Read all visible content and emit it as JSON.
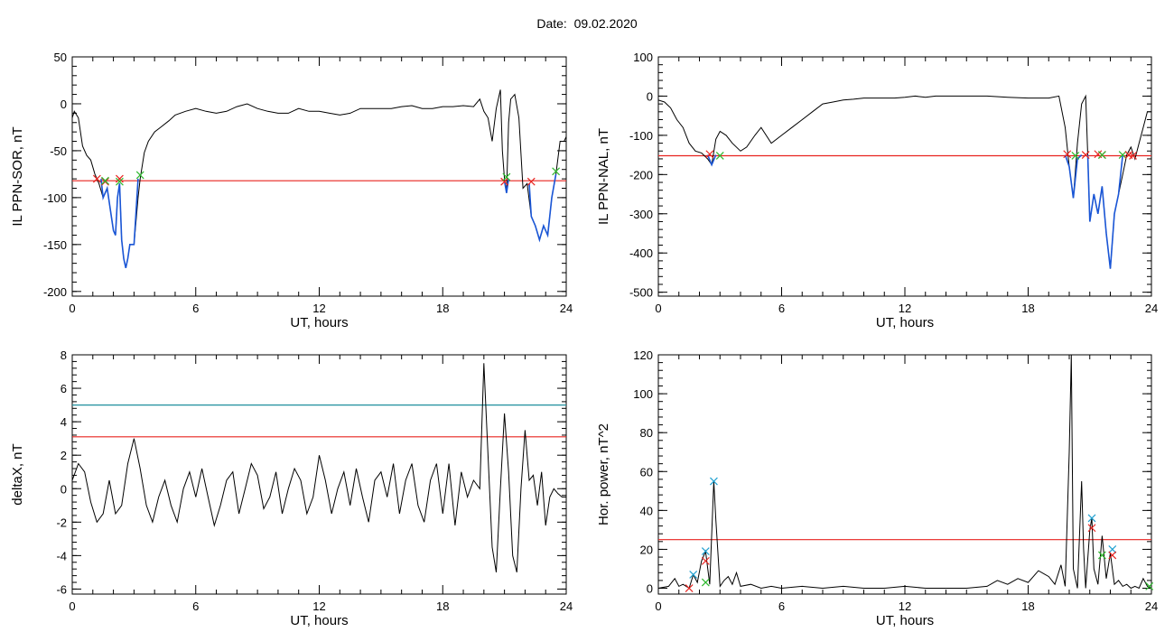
{
  "title": "Date:  09.02.2020",
  "chart_data": [
    {
      "type": "line",
      "id": "p1",
      "ylabel": "IL PPN-SOR, nT",
      "xlabel": "UT, hours",
      "xlim": [
        0,
        24
      ],
      "ylim": [
        -205,
        50
      ],
      "xticks": [
        0,
        6,
        12,
        18,
        24
      ],
      "yticks": [
        -200,
        -150,
        -100,
        -50,
        0,
        50
      ],
      "series": [
        {
          "color": "#000000",
          "x": [
            0,
            0.1,
            0.3,
            0.5,
            0.7,
            0.9,
            1.1,
            1.3,
            1.5,
            1.7,
            1.9,
            2.0,
            2.1,
            2.2,
            2.3,
            2.4,
            2.5,
            2.6,
            2.7,
            2.8,
            3.0,
            3.2,
            3.3,
            3.5,
            3.7,
            4.0,
            4.3,
            4.7,
            5.0,
            5.5,
            6.0,
            6.5,
            7.0,
            7.5,
            8.0,
            8.5,
            9.0,
            9.5,
            10.0,
            10.5,
            11.0,
            11.5,
            12.0,
            12.5,
            13.0,
            13.5,
            14.0,
            14.5,
            15.0,
            15.5,
            16.0,
            16.5,
            17.0,
            17.5,
            18.0,
            18.5,
            19.0,
            19.5,
            19.8,
            20.0,
            20.2,
            20.4,
            20.6,
            20.8,
            20.9,
            21.0,
            21.1,
            21.2,
            21.3,
            21.5,
            21.7,
            21.9,
            22.1,
            22.3,
            22.5,
            22.7,
            22.9,
            23.1,
            23.3,
            23.5,
            23.7,
            23.9,
            24.0
          ],
          "y": [
            -15,
            -8,
            -15,
            -45,
            -55,
            -60,
            -75,
            -85,
            -100,
            -90,
            -120,
            -135,
            -140,
            -100,
            -85,
            -145,
            -165,
            -175,
            -165,
            -150,
            -150,
            -100,
            -80,
            -52,
            -40,
            -30,
            -25,
            -18,
            -12,
            -8,
            -5,
            -8,
            -10,
            -8,
            -3,
            0,
            -5,
            -8,
            -10,
            -10,
            -5,
            -8,
            -8,
            -10,
            -12,
            -10,
            -5,
            -5,
            -5,
            -5,
            -3,
            -2,
            -5,
            -5,
            -3,
            -3,
            -2,
            -3,
            5,
            -8,
            -15,
            -40,
            -5,
            15,
            -50,
            -80,
            -95,
            -20,
            5,
            10,
            -15,
            -90,
            -85,
            -120,
            -130,
            -145,
            -130,
            -140,
            -100,
            -75,
            -40,
            -40,
            -35
          ]
        },
        {
          "color": "#1a56d6",
          "x": [
            1.4,
            1.5,
            1.7,
            1.9,
            2.0,
            2.1,
            2.2,
            2.3,
            2.4,
            2.5,
            2.6,
            2.7,
            2.8,
            3.0,
            3.2
          ],
          "y": [
            -80,
            -100,
            -90,
            -120,
            -135,
            -140,
            -100,
            -85,
            -145,
            -165,
            -175,
            -165,
            -150,
            -150,
            -80
          ]
        },
        {
          "color": "#1a56d6",
          "x": [
            21.0,
            21.1,
            21.2
          ],
          "y": [
            -82,
            -95,
            -80
          ]
        },
        {
          "color": "#1a56d6",
          "x": [
            22.2,
            22.3,
            22.5,
            22.7,
            22.9,
            23.1,
            23.3,
            23.5
          ],
          "y": [
            -85,
            -120,
            -130,
            -145,
            -130,
            -140,
            -100,
            -75
          ]
        }
      ],
      "hlines": [
        {
          "y": -82,
          "color": "#e8231f"
        }
      ],
      "markers": [
        {
          "x": 1.2,
          "y": -80,
          "color": "#e8231f"
        },
        {
          "x": 1.6,
          "y": -83,
          "color": "#e8231f"
        },
        {
          "x": 1.6,
          "y": -82,
          "color": "#2db82d"
        },
        {
          "x": 2.3,
          "y": -80,
          "color": "#e8231f"
        },
        {
          "x": 2.3,
          "y": -83,
          "color": "#2db82d"
        },
        {
          "x": 3.3,
          "y": -76,
          "color": "#2db82d"
        },
        {
          "x": 21.0,
          "y": -83,
          "color": "#e8231f"
        },
        {
          "x": 21.1,
          "y": -78,
          "color": "#2db82d"
        },
        {
          "x": 22.3,
          "y": -83,
          "color": "#e8231f"
        },
        {
          "x": 23.5,
          "y": -72,
          "color": "#2db82d"
        }
      ]
    },
    {
      "type": "line",
      "id": "p2",
      "ylabel": "IL PPN-NAL, nT",
      "xlabel": "UT, hours",
      "xlim": [
        0,
        24
      ],
      "ylim": [
        -510,
        100
      ],
      "xticks": [
        0,
        6,
        12,
        18,
        24
      ],
      "yticks": [
        -500,
        -400,
        -300,
        -200,
        -100,
        0,
        100
      ],
      "series": [
        {
          "color": "#000000",
          "x": [
            0,
            0.3,
            0.6,
            0.9,
            1.2,
            1.5,
            1.8,
            2.1,
            2.4,
            2.6,
            2.8,
            3.0,
            3.3,
            3.6,
            4.0,
            4.3,
            4.7,
            5.0,
            5.5,
            6.0,
            6.5,
            7.0,
            7.5,
            8.0,
            8.5,
            9.0,
            9.5,
            10.0,
            10.5,
            11.0,
            11.5,
            12.0,
            12.5,
            13.0,
            13.5,
            14.0,
            15.0,
            16.0,
            17.0,
            18.0,
            19.0,
            19.5,
            19.8,
            20.0,
            20.2,
            20.4,
            20.6,
            20.8,
            20.9,
            21.0,
            21.2,
            21.4,
            21.6,
            21.8,
            22.0,
            22.2,
            22.4,
            22.6,
            22.8,
            23.0,
            23.2,
            23.4,
            23.6,
            23.8,
            24.0
          ],
          "y": [
            -10,
            -15,
            -30,
            -60,
            -80,
            -120,
            -140,
            -145,
            -160,
            -175,
            -110,
            -90,
            -100,
            -120,
            -140,
            -130,
            -100,
            -80,
            -120,
            -100,
            -80,
            -60,
            -40,
            -20,
            -15,
            -10,
            -8,
            -5,
            -5,
            -5,
            -5,
            -3,
            0,
            -3,
            0,
            0,
            0,
            0,
            -3,
            -5,
            -5,
            0,
            -80,
            -180,
            -260,
            -120,
            -20,
            0,
            -150,
            -320,
            -250,
            -300,
            -230,
            -350,
            -440,
            -300,
            -250,
            -200,
            -150,
            -130,
            -160,
            -120,
            -80,
            -40,
            -40
          ]
        },
        {
          "color": "#1a56d6",
          "x": [
            2.4,
            2.6,
            2.8
          ],
          "y": [
            -150,
            -175,
            -150
          ]
        },
        {
          "color": "#1a56d6",
          "x": [
            19.8,
            20.0,
            20.2,
            20.4,
            20.6
          ],
          "y": [
            -150,
            -180,
            -260,
            -160,
            -150
          ]
        },
        {
          "color": "#1a56d6",
          "x": [
            20.9,
            21.0,
            21.2,
            21.4,
            21.6,
            21.8,
            22.0,
            22.2,
            22.4,
            22.6
          ],
          "y": [
            -150,
            -320,
            -250,
            -300,
            -230,
            -350,
            -440,
            -300,
            -250,
            -150
          ]
        }
      ],
      "hlines": [
        {
          "y": -152,
          "color": "#e8231f"
        }
      ],
      "markers": [
        {
          "x": 2.5,
          "y": -148,
          "color": "#e8231f"
        },
        {
          "x": 3.0,
          "y": -152,
          "color": "#2db82d"
        },
        {
          "x": 19.9,
          "y": -148,
          "color": "#e8231f"
        },
        {
          "x": 20.3,
          "y": -152,
          "color": "#2db82d"
        },
        {
          "x": 20.8,
          "y": -150,
          "color": "#e8231f"
        },
        {
          "x": 21.4,
          "y": -148,
          "color": "#e8231f"
        },
        {
          "x": 21.6,
          "y": -150,
          "color": "#e8231f"
        },
        {
          "x": 21.6,
          "y": -150,
          "color": "#2db82d"
        },
        {
          "x": 22.6,
          "y": -150,
          "color": "#2db82d"
        },
        {
          "x": 22.9,
          "y": -150,
          "color": "#e8231f"
        },
        {
          "x": 23.1,
          "y": -152,
          "color": "#e8231f"
        }
      ]
    },
    {
      "type": "line",
      "id": "p3",
      "ylabel": "deltaX, nT",
      "xlabel": "UT, hours",
      "xlim": [
        0,
        24
      ],
      "ylim": [
        -6.3,
        8
      ],
      "xticks": [
        0,
        6,
        12,
        18,
        24
      ],
      "yticks": [
        -6,
        -4,
        -2,
        0,
        2,
        4,
        6,
        8
      ],
      "series": [
        {
          "color": "#000000",
          "x": [
            0,
            0.3,
            0.6,
            0.9,
            1.2,
            1.5,
            1.8,
            2.1,
            2.4,
            2.7,
            3.0,
            3.3,
            3.6,
            3.9,
            4.2,
            4.5,
            4.8,
            5.1,
            5.4,
            5.7,
            6.0,
            6.3,
            6.6,
            6.9,
            7.2,
            7.5,
            7.8,
            8.1,
            8.4,
            8.7,
            9.0,
            9.3,
            9.6,
            9.9,
            10.2,
            10.5,
            10.8,
            11.1,
            11.4,
            11.7,
            12.0,
            12.3,
            12.6,
            12.9,
            13.2,
            13.5,
            13.8,
            14.1,
            14.4,
            14.7,
            15.0,
            15.3,
            15.6,
            15.9,
            16.2,
            16.5,
            16.8,
            17.1,
            17.4,
            17.7,
            18.0,
            18.3,
            18.6,
            18.9,
            19.2,
            19.5,
            19.8,
            20.0,
            20.2,
            20.4,
            20.6,
            20.8,
            21.0,
            21.2,
            21.4,
            21.6,
            21.8,
            22.0,
            22.2,
            22.4,
            22.6,
            22.8,
            23.0,
            23.2,
            23.4,
            23.6,
            23.8,
            24.0
          ],
          "y": [
            0.5,
            1.5,
            1.0,
            -0.8,
            -2.0,
            -1.5,
            0.5,
            -1.5,
            -1.0,
            1.5,
            3.0,
            1.2,
            -1.0,
            -2.0,
            -0.5,
            0.5,
            -1.0,
            -2.0,
            0.0,
            1.0,
            -0.5,
            1.2,
            -0.5,
            -2.2,
            -1.0,
            0.5,
            1.0,
            -1.5,
            0.0,
            1.5,
            0.8,
            -1.2,
            -0.5,
            1.0,
            -1.5,
            0.0,
            1.2,
            0.5,
            -1.5,
            -0.5,
            2.0,
            0.5,
            -1.5,
            0.0,
            1.0,
            -1.0,
            1.2,
            -0.5,
            -2.0,
            0.5,
            1.0,
            -0.5,
            1.5,
            -1.5,
            0.5,
            1.5,
            -1.0,
            -2.0,
            0.5,
            1.5,
            -1.5,
            1.5,
            -2.2,
            1.0,
            -0.5,
            0.5,
            0.0,
            7.5,
            2.0,
            -3.5,
            -5.0,
            0.0,
            4.5,
            1.0,
            -4.0,
            -5.0,
            0.0,
            3.5,
            0.5,
            0.8,
            -1.0,
            1.0,
            -2.2,
            -0.5,
            0.0,
            -0.3,
            -0.5,
            -0.5
          ]
        }
      ],
      "hlines": [
        {
          "y": 5.0,
          "color": "#1f8f9e"
        },
        {
          "y": 3.1,
          "color": "#e8231f"
        }
      ],
      "markers": []
    },
    {
      "type": "line",
      "id": "p4",
      "ylabel": "Hor. power, nT^2",
      "xlabel": "UT, hours",
      "xlim": [
        0,
        24
      ],
      "ylim": [
        -3,
        120
      ],
      "xticks": [
        0,
        6,
        12,
        18,
        24
      ],
      "yticks": [
        0,
        20,
        40,
        60,
        80,
        100,
        120
      ],
      "series": [
        {
          "color": "#000000",
          "x": [
            0,
            0.5,
            0.8,
            1.0,
            1.2,
            1.5,
            1.7,
            1.9,
            2.1,
            2.3,
            2.5,
            2.7,
            2.8,
            3.0,
            3.2,
            3.4,
            3.6,
            3.8,
            4.0,
            4.5,
            5.0,
            5.5,
            6.0,
            7.0,
            8.0,
            9.0,
            10.0,
            11.0,
            12.0,
            13.0,
            14.0,
            15.0,
            16.0,
            16.5,
            17.0,
            17.5,
            18.0,
            18.5,
            19.0,
            19.3,
            19.6,
            19.8,
            20.0,
            20.1,
            20.2,
            20.4,
            20.6,
            20.7,
            20.8,
            21.0,
            21.1,
            21.2,
            21.4,
            21.6,
            21.8,
            22.0,
            22.2,
            22.4,
            22.6,
            22.8,
            23.0,
            23.2,
            23.4,
            23.6,
            23.8,
            24.0
          ],
          "y": [
            0,
            1,
            5,
            1,
            2,
            0,
            7,
            3,
            14,
            19,
            2,
            55,
            35,
            1,
            4,
            6,
            2,
            8,
            1,
            2,
            0,
            1,
            0,
            1,
            0,
            1,
            0,
            0,
            1,
            0,
            0,
            0,
            1,
            4,
            2,
            5,
            3,
            9,
            6,
            2,
            12,
            1,
            70,
            120,
            10,
            0,
            55,
            20,
            0,
            30,
            36,
            10,
            2,
            27,
            5,
            18,
            2,
            4,
            1,
            2,
            0,
            1,
            0,
            5,
            1,
            0
          ]
        }
      ],
      "hlines": [
        {
          "y": 25,
          "color": "#e8231f"
        }
      ],
      "markers": [
        {
          "x": 1.5,
          "y": 0,
          "color": "#e8231f"
        },
        {
          "x": 1.7,
          "y": 7,
          "color": "#1fa0d0"
        },
        {
          "x": 2.3,
          "y": 19,
          "color": "#1fa0d0"
        },
        {
          "x": 2.3,
          "y": 14,
          "color": "#e8231f"
        },
        {
          "x": 2.3,
          "y": 3,
          "color": "#2db82d"
        },
        {
          "x": 2.7,
          "y": 55,
          "color": "#1fa0d0"
        },
        {
          "x": 21.1,
          "y": 36,
          "color": "#1fa0d0"
        },
        {
          "x": 21.1,
          "y": 31,
          "color": "#e8231f"
        },
        {
          "x": 21.6,
          "y": 17,
          "color": "#2db82d"
        },
        {
          "x": 22.1,
          "y": 20,
          "color": "#1fa0d0"
        },
        {
          "x": 22.1,
          "y": 17,
          "color": "#e8231f"
        },
        {
          "x": 23.9,
          "y": 1,
          "color": "#2db82d"
        }
      ]
    }
  ]
}
